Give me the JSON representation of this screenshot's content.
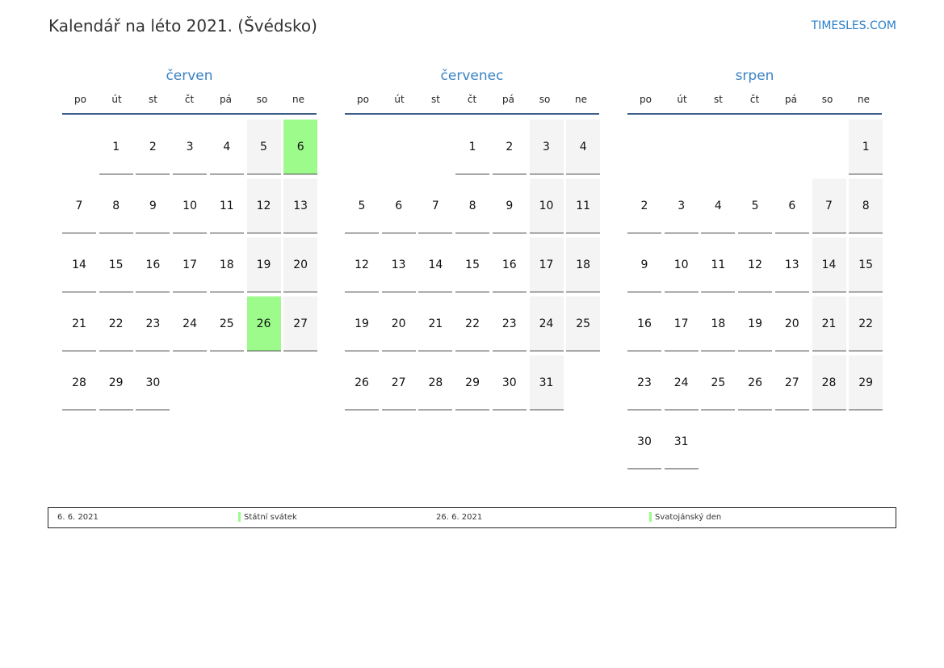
{
  "title": "Kalendář na léto 2021. (Švédsko)",
  "brand": "TIMESLES.COM",
  "weekdays": [
    "po",
    "út",
    "st",
    "čt",
    "pá",
    "so",
    "ne"
  ],
  "colors": {
    "holiday": "#9cfb8a",
    "weekend": "#f4f4f4",
    "accent": "#3b82c4"
  },
  "months": [
    {
      "name": "červen",
      "weeks": [
        [
          null,
          1,
          2,
          3,
          4,
          5,
          6
        ],
        [
          7,
          8,
          9,
          10,
          11,
          12,
          13
        ],
        [
          14,
          15,
          16,
          17,
          18,
          19,
          20
        ],
        [
          21,
          22,
          23,
          24,
          25,
          26,
          27
        ],
        [
          28,
          29,
          30,
          null,
          null,
          null,
          null
        ]
      ],
      "holidays": [
        6,
        26
      ]
    },
    {
      "name": "červenec",
      "weeks": [
        [
          null,
          null,
          null,
          1,
          2,
          3,
          4
        ],
        [
          5,
          6,
          7,
          8,
          9,
          10,
          11
        ],
        [
          12,
          13,
          14,
          15,
          16,
          17,
          18
        ],
        [
          19,
          20,
          21,
          22,
          23,
          24,
          25
        ],
        [
          26,
          27,
          28,
          29,
          30,
          31,
          null
        ]
      ],
      "holidays": []
    },
    {
      "name": "srpen",
      "weeks": [
        [
          null,
          null,
          null,
          null,
          null,
          null,
          1
        ],
        [
          2,
          3,
          4,
          5,
          6,
          7,
          8
        ],
        [
          9,
          10,
          11,
          12,
          13,
          14,
          15
        ],
        [
          16,
          17,
          18,
          19,
          20,
          21,
          22
        ],
        [
          23,
          24,
          25,
          26,
          27,
          28,
          29
        ],
        [
          30,
          31,
          null,
          null,
          null,
          null,
          null
        ]
      ],
      "holidays": []
    }
  ],
  "legend": [
    {
      "date": "6. 6. 2021",
      "label": "Státní svátek"
    },
    {
      "date": "26. 6. 2021",
      "label": "Svatojánský den"
    }
  ]
}
